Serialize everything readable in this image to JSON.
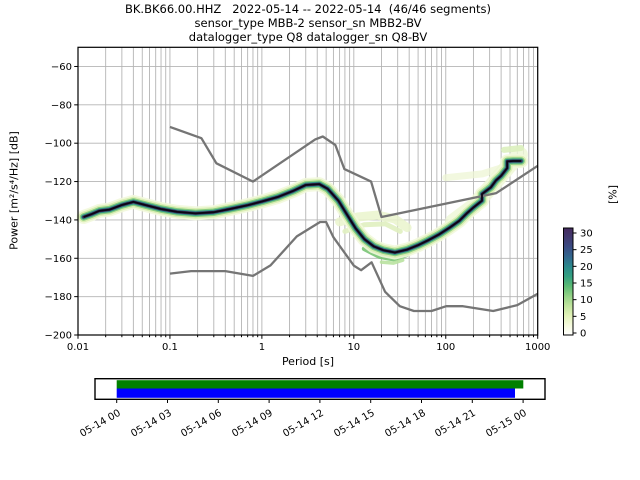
{
  "title": {
    "line1": "BK.BK66.00.HHZ   2022-05-14 -- 2022-05-14  (46/46 segments)",
    "line2": "sensor_type MBB-2 sensor_sn MBB2-BV",
    "line3": "datalogger_type Q8 datalogger_sn Q8-BV"
  },
  "chart_data": {
    "type": "heatmap",
    "title": "BK.BK66.00.HHZ 2022-05-14 -- 2022-05-14 (46/46 segments)",
    "xlabel": "Period [s]",
    "ylabel": "Power [m²/s⁴/Hz] [dB]",
    "xscale": "log",
    "xlim": [
      0.01,
      1000
    ],
    "ylim": [
      -200,
      -50
    ],
    "grid": true,
    "x_ticks": [
      0.01,
      0.1,
      1,
      10,
      100,
      1000
    ],
    "x_tick_labels": [
      "0.01",
      "0.1",
      "1",
      "10",
      "100",
      "1000"
    ],
    "y_ticks": [
      -60,
      -80,
      -100,
      -120,
      -140,
      -160,
      -180,
      -200
    ],
    "y_tick_labels": [
      "−60",
      "−80",
      "−100",
      "−120",
      "−140",
      "−160",
      "−180",
      "−200"
    ],
    "colorbar": {
      "label": "[%]",
      "ticks": [
        0,
        5,
        10,
        15,
        20,
        25,
        30
      ],
      "tick_labels": [
        "0",
        "5",
        "10",
        "15",
        "20",
        "25",
        "30"
      ],
      "colors": [
        "#ffffff",
        "#f6fadd",
        "#e2f3b8",
        "#c0e49e",
        "#93d286",
        "#5cbb74",
        "#34a181",
        "#2b8a8c",
        "#32688e",
        "#3a4d84",
        "#413a70",
        "#452a5e"
      ]
    },
    "series": [
      {
        "name": "noise-model-high (NHNM)",
        "color": "#757575",
        "width": 2.3,
        "points": [
          [
            0.1,
            -91.5
          ],
          [
            0.22,
            -97.4
          ],
          [
            0.32,
            -110.5
          ],
          [
            0.8,
            -120
          ],
          [
            3.8,
            -98
          ],
          [
            4.6,
            -96.5
          ],
          [
            6.3,
            -101
          ],
          [
            7.9,
            -113.5
          ],
          [
            15.4,
            -120
          ],
          [
            20,
            -138.5
          ],
          [
            354.8,
            -126
          ],
          [
            1000,
            -111.8
          ]
        ]
      },
      {
        "name": "noise-model-low (NLNM)",
        "color": "#757575",
        "width": 2.3,
        "points": [
          [
            0.1,
            -168
          ],
          [
            0.17,
            -166.7
          ],
          [
            0.4,
            -166.7
          ],
          [
            0.8,
            -169.2
          ],
          [
            1.24,
            -163.7
          ],
          [
            2.4,
            -148.6
          ],
          [
            4.3,
            -141.1
          ],
          [
            5,
            -141.1
          ],
          [
            6,
            -149
          ],
          [
            10,
            -163.8
          ],
          [
            12,
            -166.2
          ],
          [
            15.6,
            -162.1
          ],
          [
            21.9,
            -177.5
          ],
          [
            31.6,
            -185
          ],
          [
            45,
            -187.5
          ],
          [
            70,
            -187.5
          ],
          [
            101,
            -185
          ],
          [
            154,
            -185
          ],
          [
            328,
            -187.5
          ],
          [
            600,
            -184.4
          ],
          [
            1000,
            -178.5
          ]
        ]
      },
      {
        "name": "ppsd-mode",
        "color": "#0a0514",
        "width": 1.8,
        "points": [
          [
            0.0115,
            -138.5
          ],
          [
            0.014,
            -137
          ],
          [
            0.017,
            -135.3
          ],
          [
            0.022,
            -134.6
          ],
          [
            0.03,
            -132.2
          ],
          [
            0.04,
            -130.6
          ],
          [
            0.055,
            -132.3
          ],
          [
            0.08,
            -134.3
          ],
          [
            0.12,
            -135.8
          ],
          [
            0.19,
            -136.6
          ],
          [
            0.3,
            -136
          ],
          [
            0.45,
            -134.3
          ],
          [
            0.7,
            -132.3
          ],
          [
            1,
            -130.4
          ],
          [
            1.5,
            -128
          ],
          [
            2.2,
            -124.8
          ],
          [
            3,
            -121.8
          ],
          [
            4.2,
            -121.3
          ],
          [
            5.2,
            -123.8
          ],
          [
            6.8,
            -130
          ],
          [
            8.5,
            -137.5
          ],
          [
            10.5,
            -144.5
          ],
          [
            13,
            -150
          ],
          [
            16.5,
            -153.8
          ],
          [
            21,
            -155.8
          ],
          [
            28,
            -157
          ],
          [
            38,
            -155.5
          ],
          [
            50,
            -153.2
          ],
          [
            65,
            -150.5
          ],
          [
            85,
            -147.5
          ],
          [
            110,
            -144
          ],
          [
            140,
            -140.5
          ],
          [
            170,
            -136.5
          ],
          [
            200,
            -133.5
          ],
          [
            248,
            -130
          ],
          [
            248,
            -126.5
          ],
          [
            310,
            -123
          ],
          [
            350,
            -119.5
          ],
          [
            400,
            -117
          ],
          [
            466,
            -113
          ],
          [
            466,
            -109.5
          ],
          [
            540,
            -109.3
          ],
          [
            660,
            -109.3
          ]
        ]
      }
    ],
    "histogram_band": {
      "layers": [
        {
          "color": "#f2f8dc",
          "width": 14,
          "opacity": 0.9
        },
        {
          "color": "#d9eeb2",
          "width": 10.5,
          "opacity": 0.95
        },
        {
          "color": "#86cb7f",
          "width": 7.5,
          "opacity": 1
        },
        {
          "color": "#2f9486",
          "width": 5,
          "opacity": 1
        },
        {
          "color": "#3b2d58",
          "width": 3,
          "opacity": 1
        }
      ],
      "patches": [
        {
          "color": "#eaf5cd",
          "width": 9,
          "opacity": 0.85,
          "points": [
            [
              7,
              -141
            ],
            [
              11,
              -138.5
            ],
            [
              18,
              -137.5
            ],
            [
              28,
              -139.5
            ],
            [
              38,
              -144
            ]
          ]
        },
        {
          "color": "#e0f0c0",
          "width": 5,
          "opacity": 0.9,
          "points": [
            [
              8,
              -146
            ],
            [
              13,
              -142.5
            ],
            [
              22,
              -142
            ],
            [
              32,
              -146
            ]
          ]
        },
        {
          "color": "#79c474",
          "width": 5,
          "opacity": 0.9,
          "points": [
            [
              13,
              -155
            ],
            [
              19,
              -159
            ],
            [
              28,
              -160.5
            ],
            [
              38,
              -158
            ]
          ]
        },
        {
          "color": "#b9e2a0",
          "width": 3.5,
          "opacity": 0.9,
          "points": [
            [
              20,
              -162
            ],
            [
              27,
              -162.5
            ],
            [
              34,
              -161
            ]
          ]
        },
        {
          "color": "#eef7d6",
          "width": 16,
          "opacity": 0.8,
          "points": [
            [
              120,
              -141
            ],
            [
              200,
              -133
            ],
            [
              320,
              -122
            ],
            [
              480,
              -112
            ],
            [
              640,
              -106
            ]
          ]
        },
        {
          "color": "#edf6d4",
          "width": 7,
          "opacity": 0.75,
          "points": [
            [
              100,
              -118
            ],
            [
              250,
              -116
            ],
            [
              460,
              -112
            ]
          ]
        },
        {
          "color": "#dcefbe",
          "width": 6,
          "opacity": 0.9,
          "points": [
            [
              430,
              -103.5
            ],
            [
              660,
              -102.5
            ]
          ]
        }
      ]
    }
  },
  "timeline": {
    "tick_labels": [
      "05-14 00",
      "05-14 03",
      "05-14 06",
      "05-14 09",
      "05-14 12",
      "05-14 15",
      "05-14 18",
      "05-14 21",
      "05-15 00"
    ],
    "coverage_color": "#008000",
    "data_color": "#0000ff"
  }
}
